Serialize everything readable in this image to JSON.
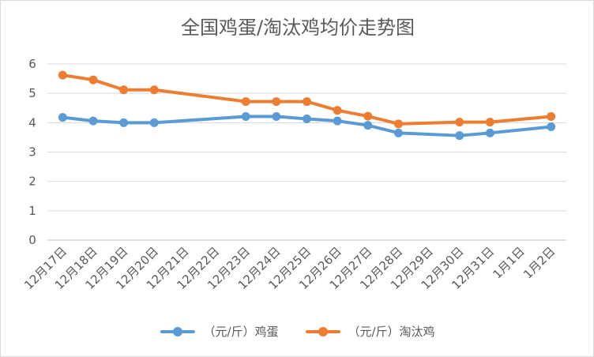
{
  "chart_data": {
    "type": "line",
    "title": "全国鸡蛋/淘汰鸡均价走势图",
    "categories": [
      "12月17日",
      "12月18日",
      "12月19日",
      "12月20日",
      "12月21日",
      "12月22日",
      "12月23日",
      "12月24日",
      "12月25日",
      "12月26日",
      "12月27日",
      "12月28日",
      "12月29日",
      "12月30日",
      "12月31日",
      "1月1日",
      "1月2日"
    ],
    "ylim": [
      0,
      6
    ],
    "yticks": [
      "0",
      "1",
      "2",
      "3",
      "4",
      "5",
      "6"
    ],
    "grid": true,
    "legend_position": "bottom",
    "series": [
      {
        "name": "（元/斤）鸡蛋",
        "color": "#5b9bd5",
        "values": [
          4.18,
          4.06,
          4.0,
          4.0,
          null,
          null,
          4.21,
          4.21,
          4.13,
          4.06,
          3.91,
          3.65,
          null,
          3.56,
          3.65,
          null,
          3.86
        ]
      },
      {
        "name": "（元/斤）淘汰鸡",
        "color": "#ed7d31",
        "values": [
          5.62,
          5.46,
          5.12,
          5.12,
          null,
          null,
          4.72,
          4.72,
          4.72,
          4.42,
          4.22,
          3.96,
          null,
          4.02,
          4.02,
          null,
          4.21
        ]
      }
    ]
  }
}
